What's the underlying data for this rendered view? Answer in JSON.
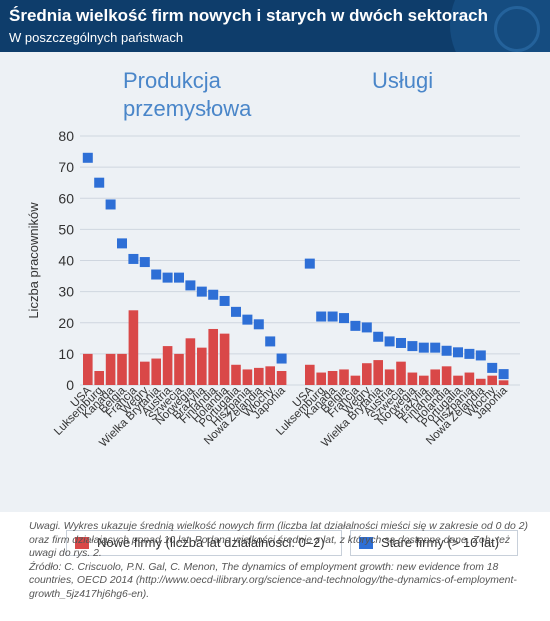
{
  "header": {
    "title": "Średnia wielkość firm nowych i starych w dwóch sektorach",
    "subtitle": "W poszczególnych państwach"
  },
  "colors": {
    "header_bg": "#0e3d6b",
    "chart_bg": "#edf1f5",
    "new_firms": "#d94848",
    "old_firms": "#2e6fd6",
    "sector_label": "#4a86c9",
    "axis_text": "#333333"
  },
  "chart_data": {
    "type": "bar",
    "ylabel": "Liczba pracowników",
    "ylim": [
      0,
      80
    ],
    "yticks": [
      0,
      10,
      20,
      30,
      40,
      50,
      60,
      70,
      80
    ],
    "grid": true,
    "legend_position": "bottom",
    "panels": [
      {
        "title": "Produkcja przemysłowa",
        "title_lines": [
          "Produkcja",
          "przemysłowa"
        ],
        "categories": [
          "USA",
          "Luksemburg",
          "Kanada",
          "Belgia",
          "Francja",
          "Węgry",
          "Wielka Brytania",
          "Austria",
          "Szwecja",
          "Norwegia",
          "Brazylia",
          "Finlandia",
          "Holandia",
          "Portugalia",
          "Hiszpania",
          "Nowa Zelandia",
          "Włochy",
          "Japonia"
        ],
        "series": [
          {
            "name": "Nowe firmy (liczba lat działalności: 0–2)",
            "values": [
              10,
              4.5,
              10,
              10,
              24,
              7.5,
              8.5,
              12.5,
              10,
              15,
              12,
              18,
              16.5,
              6.5,
              5,
              5.5,
              6,
              4.5
            ]
          },
          {
            "name": "Stare firmy (> 10 lat)",
            "values": [
              73,
              65,
              58,
              45.5,
              40.5,
              39.5,
              35.5,
              34.5,
              34.5,
              32,
              30,
              29,
              27,
              23.5,
              21,
              19.5,
              14,
              8.5
            ]
          }
        ]
      },
      {
        "title": "Usługi",
        "title_lines": [
          "Usługi"
        ],
        "categories": [
          "USA",
          "Luksemburg",
          "Kanada",
          "Belgia",
          "Francja",
          "Węgry",
          "Wielka Brytania",
          "Austria",
          "Szwecja",
          "Norwegia",
          "Brazylia",
          "Finlandia",
          "Holandia",
          "Portugalia",
          "Hiszpania",
          "Nowa Zelandia",
          "Włochy",
          "Japonia"
        ],
        "series": [
          {
            "name": "Nowe firmy (liczba lat działalności: 0–2)",
            "values": [
              6.5,
              4,
              4.5,
              5,
              3,
              7,
              8,
              5,
              7.5,
              4,
              3,
              5,
              6,
              3,
              4,
              2,
              3,
              1.5
            ]
          },
          {
            "name": "Stare firmy (> 10 lat)",
            "values": [
              39,
              22,
              22,
              21.5,
              19,
              18.5,
              15.5,
              14,
              13.5,
              12.5,
              12,
              12,
              11,
              10.5,
              10,
              9.5,
              5.5,
              3.5
            ]
          }
        ]
      }
    ]
  },
  "legend": {
    "new_label": "Nowe firmy (liczba lat działalności: 0–2)",
    "old_label": "Stare firmy (> 10 lat)"
  },
  "note": {
    "uwagi": "Uwagi. Wykres ukazuje średnią wielkość nowych firm (liczba lat działalności mieści się w zakresie od 0 do 2) oraz firm działających ponad 10 lat. Podano wielkości średnie z lat, z których są dostępne dane. Zob. też uwagi do rys. 2.",
    "zrodlo": "Źródło: C. Criscuolo, P.N. Gal, C. Menon, The dynamics of employment growth: new evidence from 18 countries, OECD 2014 (http://www.oecd-ilibrary.org/science-and-technology/the-dynamics-of-employment-growth_5jz417hj6hg6-en)."
  }
}
